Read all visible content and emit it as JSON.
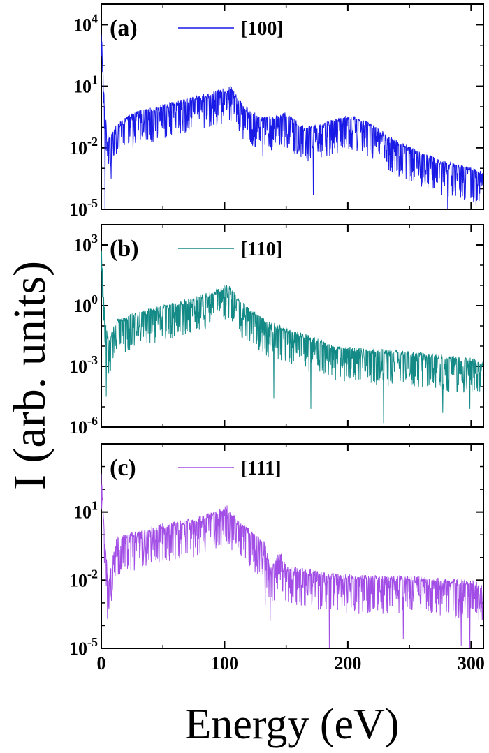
{
  "figure": {
    "xlabel": "Energy (eV)",
    "ylabel": "I (arb. units)"
  },
  "chart_data": [
    {
      "type": "line",
      "panel_label": "(a)",
      "log_y": true,
      "xlim": [
        0,
        310
      ],
      "ylim": [
        1e-05,
        100000
      ],
      "yticks": [
        {
          "value": 1e-05,
          "base": "10",
          "exp": "-5"
        },
        {
          "value": 0.01,
          "base": "10",
          "exp": "-2"
        },
        {
          "value": 10,
          "base": "10",
          "exp": "1"
        },
        {
          "value": 10000,
          "base": "10",
          "exp": "4"
        }
      ],
      "xticks": [
        0,
        100,
        200,
        300
      ],
      "show_xtick_labels": false,
      "legend_position": "top-center",
      "series": [
        {
          "name": "[100]",
          "color": "#1a1ae6",
          "envelope_x": [
            0,
            3,
            6,
            12,
            25,
            50,
            75,
            90,
            100,
            105,
            115,
            130,
            150,
            165,
            185,
            200,
            215,
            235,
            255,
            275,
            295,
            310
          ],
          "envelope_log10": [
            4.3,
            -0.5,
            -1.5,
            -1.0,
            -0.4,
            0.0,
            0.4,
            0.6,
            0.8,
            0.9,
            0.0,
            -0.6,
            -0.4,
            -1.1,
            -0.8,
            -0.5,
            -0.8,
            -1.6,
            -2.2,
            -2.7,
            -3.0,
            -3.2
          ],
          "spike_depth": 1.6,
          "deep_dips": [
            [
              3,
              -5.0
            ],
            [
              8,
              -3.5
            ],
            [
              131,
              -2.4
            ],
            [
              172,
              -4.3
            ],
            [
              281,
              -5.0
            ],
            [
              304,
              -4.8
            ]
          ]
        }
      ]
    },
    {
      "type": "line",
      "panel_label": "(b)",
      "log_y": true,
      "xlim": [
        0,
        310
      ],
      "ylim": [
        1e-06,
        10000
      ],
      "yticks": [
        {
          "value": 1e-06,
          "base": "10",
          "exp": "-6"
        },
        {
          "value": 0.001,
          "base": "10",
          "exp": "-3"
        },
        {
          "value": 1,
          "base": "10",
          "exp": "0"
        },
        {
          "value": 1000,
          "base": "10",
          "exp": "3"
        }
      ],
      "xticks": [
        0,
        100,
        200,
        300
      ],
      "show_xtick_labels": false,
      "legend_position": "top-center",
      "series": [
        {
          "name": "[110]",
          "color": "#138a86",
          "envelope_x": [
            0,
            3,
            6,
            12,
            25,
            50,
            75,
            90,
            100,
            103,
            112,
            130,
            150,
            170,
            190,
            210,
            240,
            270,
            300,
            310
          ],
          "envelope_log10": [
            3.0,
            -0.8,
            -1.8,
            -0.8,
            -0.5,
            -0.1,
            0.3,
            0.6,
            0.9,
            1.0,
            0.2,
            -0.7,
            -1.2,
            -1.6,
            -2.1,
            -2.2,
            -2.3,
            -2.5,
            -2.7,
            -2.9
          ],
          "spike_depth": 1.7,
          "deep_dips": [
            [
              4,
              -4.5
            ],
            [
              140,
              -4.6
            ],
            [
              170,
              -5.1
            ],
            [
              229,
              -5.8
            ],
            [
              277,
              -5.3
            ],
            [
              299,
              -5.1
            ]
          ]
        }
      ]
    },
    {
      "type": "line",
      "panel_label": "(c)",
      "log_y": true,
      "xlim": [
        0,
        310
      ],
      "ylim": [
        1e-05,
        10000
      ],
      "yticks": [
        {
          "value": 1e-05,
          "base": "10",
          "exp": "-5"
        },
        {
          "value": 0.01,
          "base": "10",
          "exp": "-2"
        },
        {
          "value": 10,
          "base": "10",
          "exp": "1"
        }
      ],
      "xticks": [
        0,
        100,
        200,
        300
      ],
      "show_xtick_labels": true,
      "xtick_labels": [
        "0",
        "100",
        "200",
        "300"
      ],
      "legend_position": "top-center",
      "series": [
        {
          "name": "[111]",
          "color": "#a24ee6",
          "envelope_x": [
            0,
            3,
            6,
            12,
            25,
            50,
            75,
            95,
            102,
            110,
            125,
            132,
            138,
            145,
            150,
            165,
            185,
            210,
            240,
            270,
            300,
            310
          ],
          "envelope_log10": [
            2.7,
            -0.6,
            -2.0,
            -0.2,
            0.0,
            0.4,
            0.6,
            1.0,
            1.2,
            0.6,
            -0.1,
            -0.3,
            -1.6,
            -0.8,
            -1.5,
            -1.6,
            -1.8,
            -1.9,
            -1.9,
            -2.0,
            -2.1,
            -2.3
          ],
          "spike_depth": 1.6,
          "deep_dips": [
            [
              5,
              -3.7
            ],
            [
              133,
              -3.1
            ],
            [
              137,
              -3.8
            ],
            [
              185,
              -5.2
            ],
            [
              245,
              -4.6
            ],
            [
              292,
              -4.9
            ],
            [
              299,
              -5.2
            ]
          ]
        }
      ]
    }
  ]
}
